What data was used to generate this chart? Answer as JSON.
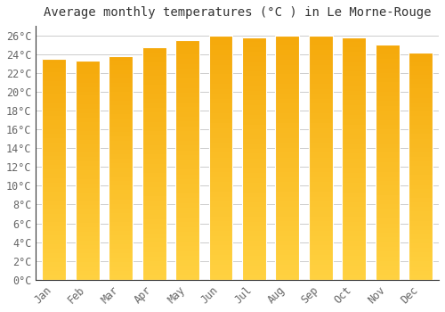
{
  "title": "Average monthly temperatures (°C ) in Le Morne-Rouge",
  "months": [
    "Jan",
    "Feb",
    "Mar",
    "Apr",
    "May",
    "Jun",
    "Jul",
    "Aug",
    "Sep",
    "Oct",
    "Nov",
    "Dec"
  ],
  "values": [
    23.5,
    23.3,
    23.8,
    24.7,
    25.5,
    26.0,
    25.8,
    26.0,
    26.0,
    25.8,
    25.0,
    24.2
  ],
  "bar_color_top": "#F5A800",
  "bar_color_bottom": "#FFD060",
  "plot_bg_color": "#FFFFFF",
  "fig_bg_color": "#FFFFFF",
  "grid_color": "#CCCCCC",
  "text_color": "#666666",
  "title_color": "#333333",
  "axis_color": "#333333",
  "ylim": [
    0,
    27
  ],
  "ytick_step": 2,
  "title_fontsize": 10,
  "tick_fontsize": 8.5,
  "bar_width": 0.72
}
